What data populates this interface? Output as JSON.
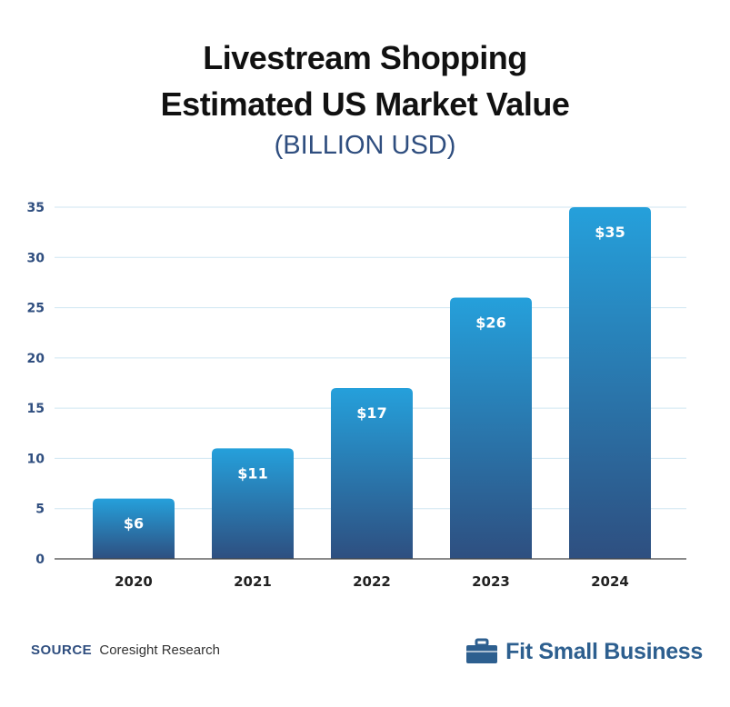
{
  "chart_data": {
    "type": "bar",
    "title": "Livestream Shopping",
    "title_line2": "Estimated US Market Value",
    "subtitle": "(BILLION USD)",
    "categories": [
      "2020",
      "2021",
      "2022",
      "2023",
      "2024"
    ],
    "values": [
      6,
      11,
      17,
      26,
      35
    ],
    "data_labels": [
      "$6",
      "$11",
      "$17",
      "$26",
      "$35"
    ],
    "ylim": [
      0,
      35
    ],
    "yticks": [
      0,
      5,
      10,
      15,
      20,
      25,
      30,
      35
    ],
    "grid": true,
    "colors": {
      "bar_top": "#25a0db",
      "bar_bottom": "#2e4f80",
      "tick_text": "#2f4e7f",
      "grid": "#cfe6f2",
      "axis": "#444444"
    }
  },
  "source": {
    "label": "SOURCE",
    "text": "Coresight Research"
  },
  "brand": {
    "name": "Fit Small Business",
    "icon": "briefcase-icon"
  }
}
